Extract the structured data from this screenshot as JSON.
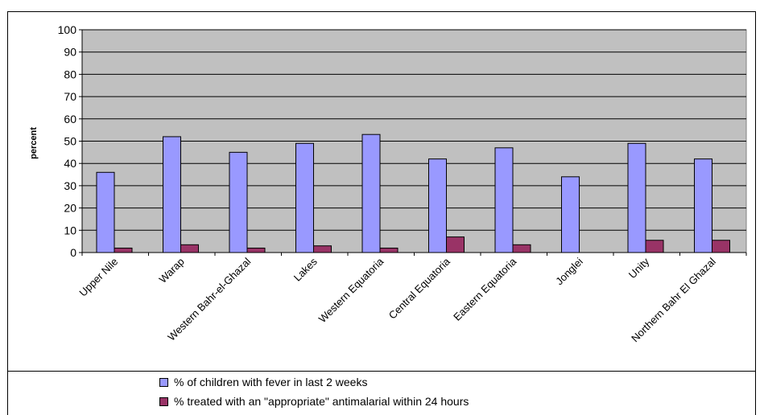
{
  "page_top_text": "",
  "chart_data": {
    "type": "bar",
    "title": "",
    "xlabel": "",
    "ylabel": "percent",
    "ylim": [
      0,
      100
    ],
    "yticks": [
      0,
      10,
      20,
      30,
      40,
      50,
      60,
      70,
      80,
      90,
      100
    ],
    "grid": true,
    "legend_position": "bottom",
    "plot_background": "#c0c0c0",
    "categories": [
      "Upper Nile",
      "Warap",
      "Western Bahr-el-Ghazal",
      "Lakes",
      "Western Equatoria",
      "Central Equatoria",
      "Eastern Equatoria",
      "Jonglei",
      "Unity",
      "Northern Bahr El Ghazal"
    ],
    "series": [
      {
        "name": "% of children with fever in last 2 weeks",
        "color": "#9999ff",
        "values": [
          36,
          52,
          45,
          49,
          53,
          42,
          47,
          34,
          49,
          42
        ]
      },
      {
        "name": "% treated with an \"appropriate\" antimalarial within 24 hours",
        "color": "#993366",
        "values": [
          2,
          3.5,
          2,
          3,
          2,
          7,
          3.5,
          0,
          5.5,
          5.5
        ]
      }
    ]
  }
}
